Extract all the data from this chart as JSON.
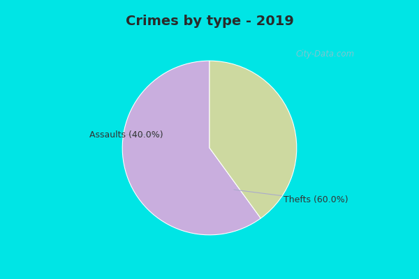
{
  "title": "Crimes by type - 2019",
  "slices": [
    {
      "label": "Thefts (60.0%)",
      "value": 60.0,
      "color": "#c9aede"
    },
    {
      "label": "Assaults (40.0%)",
      "value": 40.0,
      "color": "#cdd9a0"
    }
  ],
  "bg_cyan": "#00e5e5",
  "bg_main": "#e8f5e9",
  "title_fontsize": 14,
  "label_fontsize": 9,
  "watermark": "City-Data.com",
  "startangle": 90,
  "title_color": "#2a2a2a"
}
